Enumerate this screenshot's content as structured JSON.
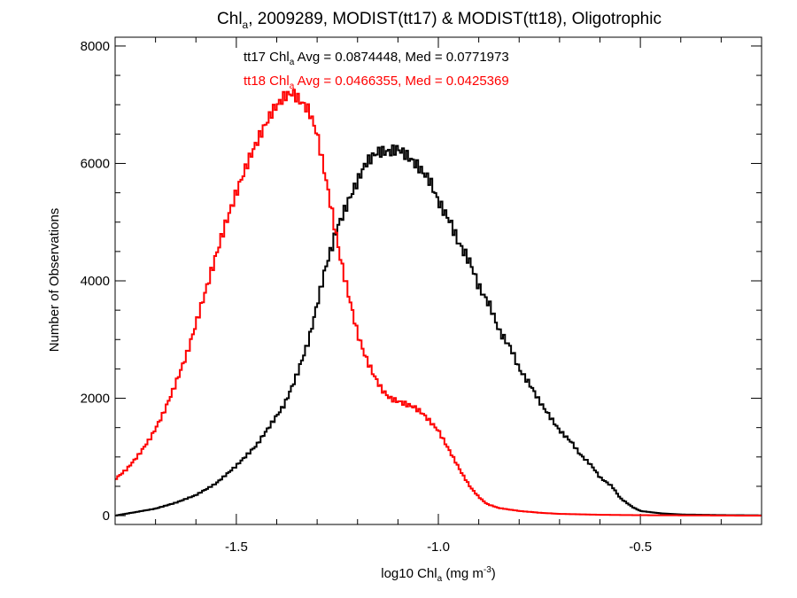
{
  "chart_data": {
    "type": "line",
    "title": {
      "prefix": "Chl",
      "subscript": "a",
      "suffix": ", 2009289, MODIST(tt17) & MODIST(tt18), Oligotrophic"
    },
    "xlabel": {
      "prefix": "log10 Chl",
      "subscript": "a",
      "mid": " (mg m",
      "superscript": "-3",
      "suffix": ")"
    },
    "ylabel": "Number of Observations",
    "xlim": [
      -1.8,
      -0.2
    ],
    "ylim": [
      -150,
      8150
    ],
    "x_ticks": [
      -1.5,
      -1.0,
      -0.5
    ],
    "x_tick_labels": [
      "-1.5",
      "-1.0",
      "-0.5"
    ],
    "y_ticks": [
      0,
      2000,
      4000,
      6000,
      8000
    ],
    "y_tick_labels": [
      "0",
      "2000",
      "4000",
      "6000",
      "8000"
    ],
    "grid": false,
    "step_style": "histogram",
    "series": [
      {
        "name": "tt17",
        "color": "#000000",
        "stat": {
          "prefix": "tt17 Chl",
          "subscript": "a",
          "suffix": " Avg = 0.0874448, Med = 0.0771973"
        },
        "x": [
          -1.8,
          -1.75,
          -1.7,
          -1.65,
          -1.6,
          -1.55,
          -1.5,
          -1.45,
          -1.42,
          -1.38,
          -1.35,
          -1.32,
          -1.3,
          -1.28,
          -1.25,
          -1.22,
          -1.2,
          -1.18,
          -1.15,
          -1.12,
          -1.1,
          -1.08,
          -1.05,
          -1.02,
          -1.0,
          -0.97,
          -0.95,
          -0.92,
          -0.9,
          -0.87,
          -0.85,
          -0.82,
          -0.8,
          -0.77,
          -0.75,
          -0.72,
          -0.7,
          -0.67,
          -0.65,
          -0.62,
          -0.6,
          -0.57,
          -0.55,
          -0.52,
          -0.5,
          -0.45,
          -0.4,
          -0.3,
          -0.2
        ],
        "y": [
          0,
          60,
          120,
          220,
          350,
          550,
          850,
          1200,
          1500,
          1900,
          2400,
          3000,
          3600,
          4200,
          4900,
          5400,
          5700,
          6000,
          6200,
          6200,
          6250,
          6150,
          5950,
          5700,
          5350,
          5000,
          4650,
          4300,
          3900,
          3550,
          3150,
          2850,
          2500,
          2200,
          1950,
          1650,
          1450,
          1250,
          1050,
          850,
          650,
          500,
          300,
          150,
          80,
          40,
          20,
          10,
          5
        ]
      },
      {
        "name": "tt18",
        "color": "#ff0000",
        "stat": {
          "prefix": "tt18 Chl",
          "subscript": "a",
          "suffix": " Avg = 0.0466355, Med = 0.0425369"
        },
        "x": [
          -1.8,
          -1.77,
          -1.74,
          -1.71,
          -1.68,
          -1.65,
          -1.62,
          -1.59,
          -1.56,
          -1.53,
          -1.5,
          -1.47,
          -1.44,
          -1.41,
          -1.38,
          -1.36,
          -1.34,
          -1.32,
          -1.3,
          -1.28,
          -1.26,
          -1.24,
          -1.22,
          -1.2,
          -1.18,
          -1.16,
          -1.14,
          -1.12,
          -1.1,
          -1.08,
          -1.06,
          -1.04,
          -1.02,
          -1.0,
          -0.98,
          -0.96,
          -0.94,
          -0.92,
          -0.9,
          -0.88,
          -0.85,
          -0.8,
          -0.75,
          -0.7,
          -0.6,
          -0.5,
          -0.3,
          -0.2
        ],
        "y": [
          620,
          800,
          1050,
          1350,
          1750,
          2250,
          2800,
          3500,
          4200,
          4900,
          5500,
          6050,
          6500,
          6900,
          7150,
          7200,
          7050,
          6900,
          6500,
          5800,
          5050,
          4300,
          3700,
          3100,
          2700,
          2400,
          2150,
          2000,
          1950,
          1900,
          1850,
          1750,
          1600,
          1450,
          1200,
          950,
          700,
          480,
          320,
          200,
          130,
          80,
          50,
          30,
          15,
          8,
          3,
          0
        ]
      }
    ]
  }
}
